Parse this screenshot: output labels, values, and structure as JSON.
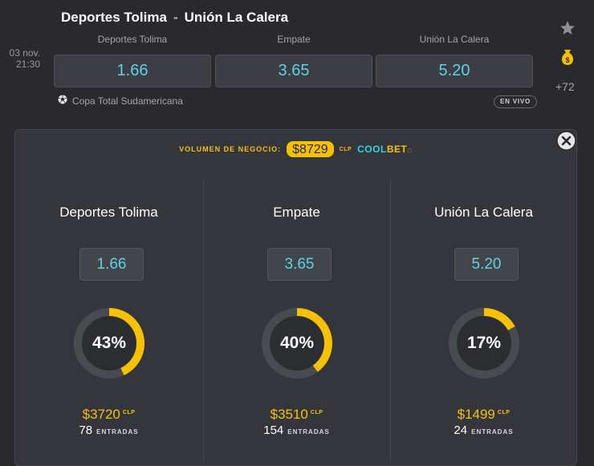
{
  "match": {
    "home": "Deportes Tolima",
    "separator": "-",
    "away": "Unión La Calera",
    "date": "03 nov.",
    "time": "21:30",
    "league": "Copa Total Sudamericana",
    "live_label": "EN VIVO",
    "more_markets": "+72"
  },
  "odds": [
    {
      "label": "Deportes Tolima",
      "value": "1.66"
    },
    {
      "label": "Empate",
      "value": "3.65"
    },
    {
      "label": "Unión La Calera",
      "value": "5.20"
    }
  ],
  "volume": {
    "label": "VOLUMEN DE NEGOCIO:",
    "amount": "$8729",
    "currency": "CLP",
    "brand_cool": "COOLBET",
    "brand_mark": "⌂"
  },
  "outcomes": [
    {
      "title": "Deportes Tolima",
      "odd": "1.66",
      "percent": 43,
      "percent_label": "43%",
      "amount": "$3720",
      "currency": "CLP",
      "entries": "78",
      "entries_label": "ENTRADAS"
    },
    {
      "title": "Empate",
      "odd": "3.65",
      "percent": 40,
      "percent_label": "40%",
      "amount": "$3510",
      "currency": "CLP",
      "entries": "154",
      "entries_label": "ENTRADAS"
    },
    {
      "title": "Unión La Calera",
      "odd": "5.20",
      "percent": 17,
      "percent_label": "17%",
      "amount": "$1499",
      "currency": "CLP",
      "entries": "24",
      "entries_label": "ENTRADAS"
    }
  ],
  "colors": {
    "accent_yellow": "#f5c100",
    "odd_cyan": "#5ad4e6",
    "ring_track": "#4a4b51",
    "coolbet_cyan": "#2fd3e6",
    "coolbet_yellow": "#f5c100"
  },
  "icons": {
    "favorite": "star-icon",
    "money": "money-bag-icon",
    "sport": "soccer-ball-icon",
    "close": "close-icon"
  }
}
